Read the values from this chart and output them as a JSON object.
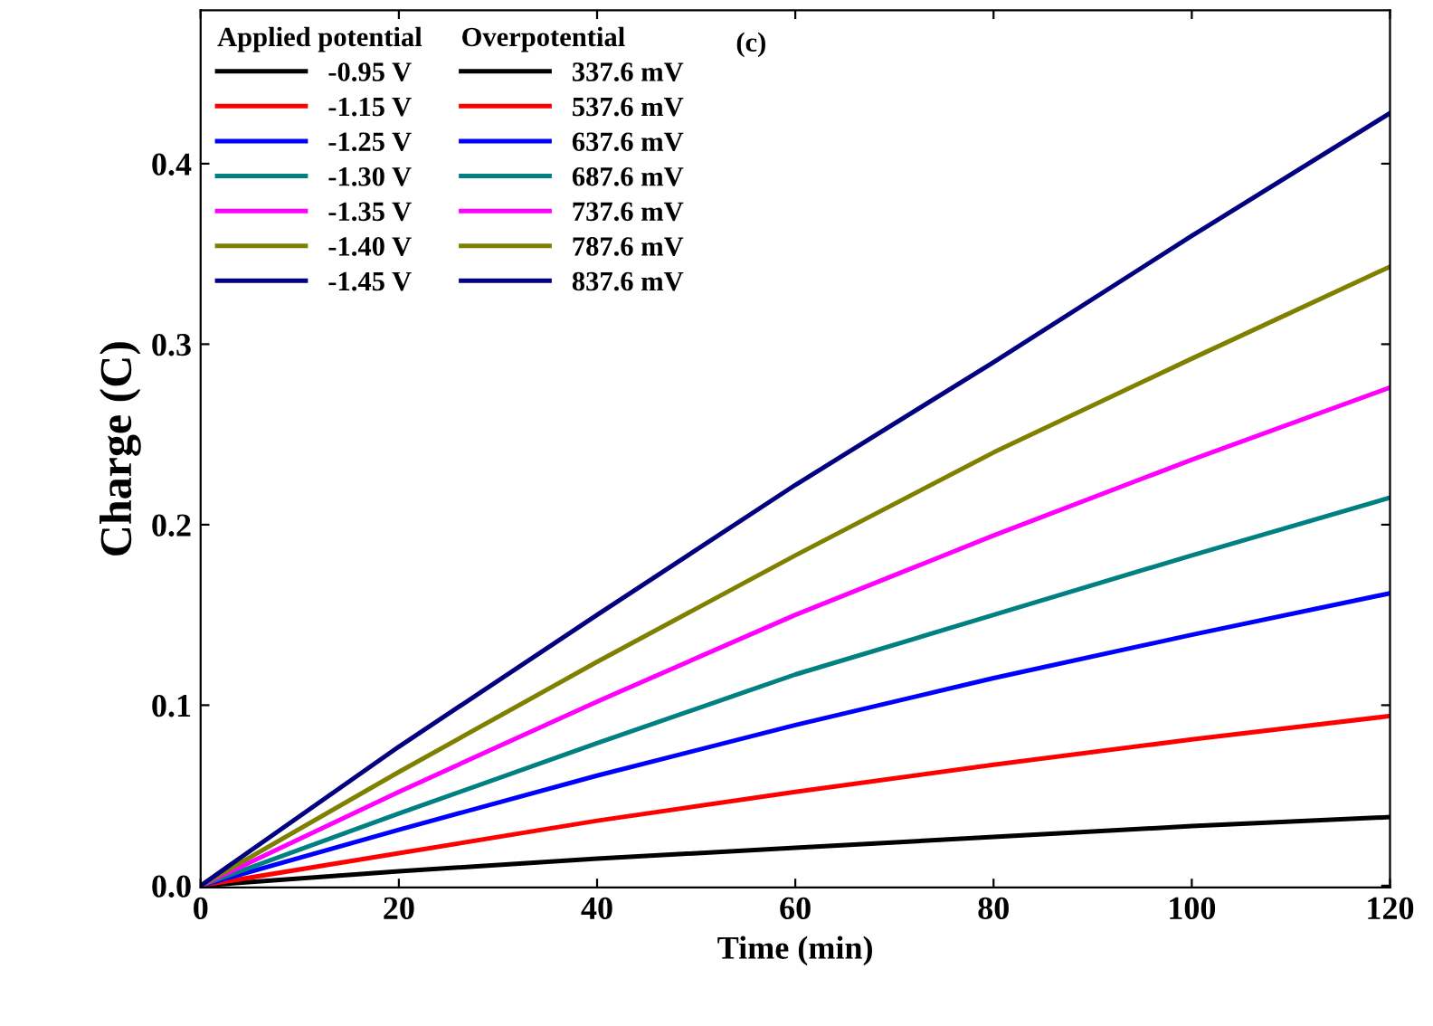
{
  "chart_data": {
    "type": "line",
    "xlabel": "Time (min)",
    "ylabel": "Charge (C)",
    "legend_title": "Applied potential",
    "x": [
      0,
      20,
      40,
      60,
      80,
      100,
      120
    ],
    "series": [
      {
        "name": "-0.95 V",
        "color": "#000000",
        "values": [
          0,
          0.008,
          0.015,
          0.021,
          0.027,
          0.033,
          0.038
        ]
      },
      {
        "name": "-1.15 V",
        "color": "#ff0000",
        "values": [
          0,
          0.018,
          0.036,
          0.052,
          0.067,
          0.081,
          0.094
        ]
      },
      {
        "name": "-1.25 V",
        "color": "#0000ff",
        "values": [
          0,
          0.031,
          0.061,
          0.089,
          0.115,
          0.139,
          0.162
        ]
      },
      {
        "name": "-1.30 V",
        "color": "#008080",
        "values": [
          0,
          0.04,
          0.079,
          0.117,
          0.15,
          0.183,
          0.215
        ]
      },
      {
        "name": "-1.35 V",
        "color": "#ff00ff",
        "values": [
          0,
          0.052,
          0.102,
          0.15,
          0.194,
          0.236,
          0.276
        ]
      },
      {
        "name": "-1.40 V",
        "color": "#808000",
        "values": [
          0,
          0.063,
          0.124,
          0.183,
          0.24,
          0.292,
          0.343
        ]
      },
      {
        "name": "-1.45 V",
        "color": "#000080",
        "values": [
          0,
          0.077,
          0.15,
          0.222,
          0.29,
          0.36,
          0.428
        ]
      }
    ],
    "annotations": [
      "337.6 mV",
      "537.6 mV",
      "637.6 mV",
      "687.6 mV",
      "737.6 mV",
      "787.6 mV",
      "837.6 mV",
      "Overpotential",
      "(c)"
    ],
    "xlim": [
      0,
      120
    ],
    "ylim": [
      -0.001,
      0.485
    ],
    "xticks": [
      0,
      20,
      40,
      60,
      80,
      100,
      120
    ],
    "yticks": [
      {
        "value": 0,
        "label": "0.0"
      },
      0.1,
      0.2,
      0.3,
      0.4
    ],
    "legend": "top left",
    "grid": false
  }
}
